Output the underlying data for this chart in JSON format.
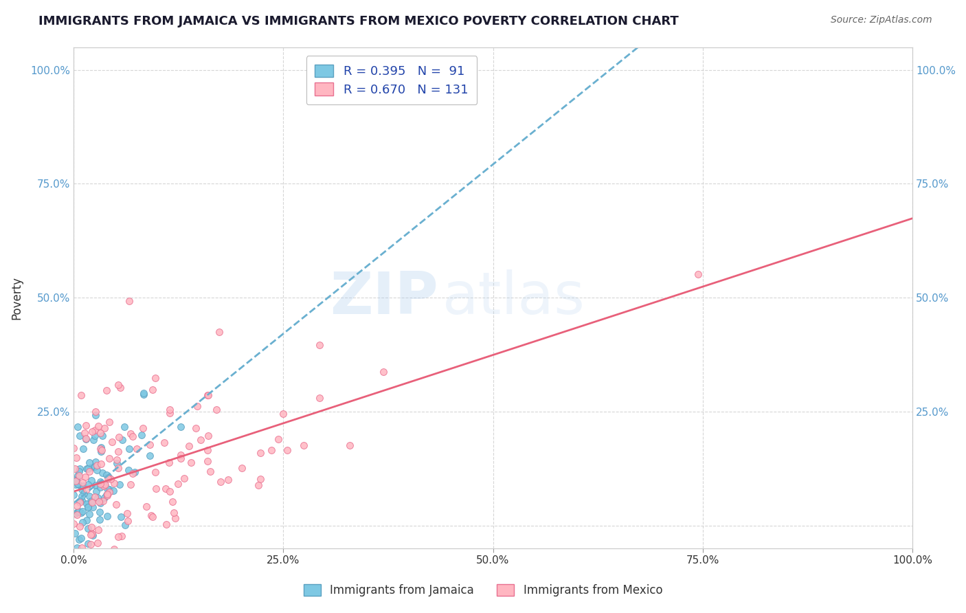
{
  "title": "IMMIGRANTS FROM JAMAICA VS IMMIGRANTS FROM MEXICO POVERTY CORRELATION CHART",
  "source": "Source: ZipAtlas.com",
  "ylabel": "Poverty",
  "xlim": [
    0.0,
    1.0
  ],
  "ylim": [
    -0.05,
    1.05
  ],
  "xticks": [
    0.0,
    0.25,
    0.5,
    0.75,
    1.0
  ],
  "xticklabels": [
    "0.0%",
    "25.0%",
    "50.0%",
    "75.0%",
    "100.0%"
  ],
  "ytick_positions": [
    0.0,
    0.25,
    0.5,
    0.75,
    1.0
  ],
  "ytick_labels": [
    "",
    "25.0%",
    "50.0%",
    "75.0%",
    "100.0%"
  ],
  "jamaica_color": "#7ec8e3",
  "mexico_color": "#ffb6c1",
  "jamaica_edge": "#5aa0c0",
  "mexico_edge": "#e87090",
  "trend_jamaica_color": "#6ab0d0",
  "trend_mexico_color": "#e8607a",
  "jamaica_R": 0.395,
  "jamaica_N": 91,
  "mexico_R": 0.67,
  "mexico_N": 131,
  "watermark_top": "ZIP",
  "watermark_bottom": "atlas",
  "title_color": "#1a1a2e",
  "source_color": "#666666",
  "legend_text_color": "#2244aa",
  "background_color": "#ffffff",
  "grid_color": "#cccccc",
  "legend_label_jamaica": "R = 0.395   N =  91",
  "legend_label_mexico": "R = 0.670   N = 131",
  "bottom_label_jamaica": "Immigrants from Jamaica",
  "bottom_label_mexico": "Immigrants from Mexico"
}
